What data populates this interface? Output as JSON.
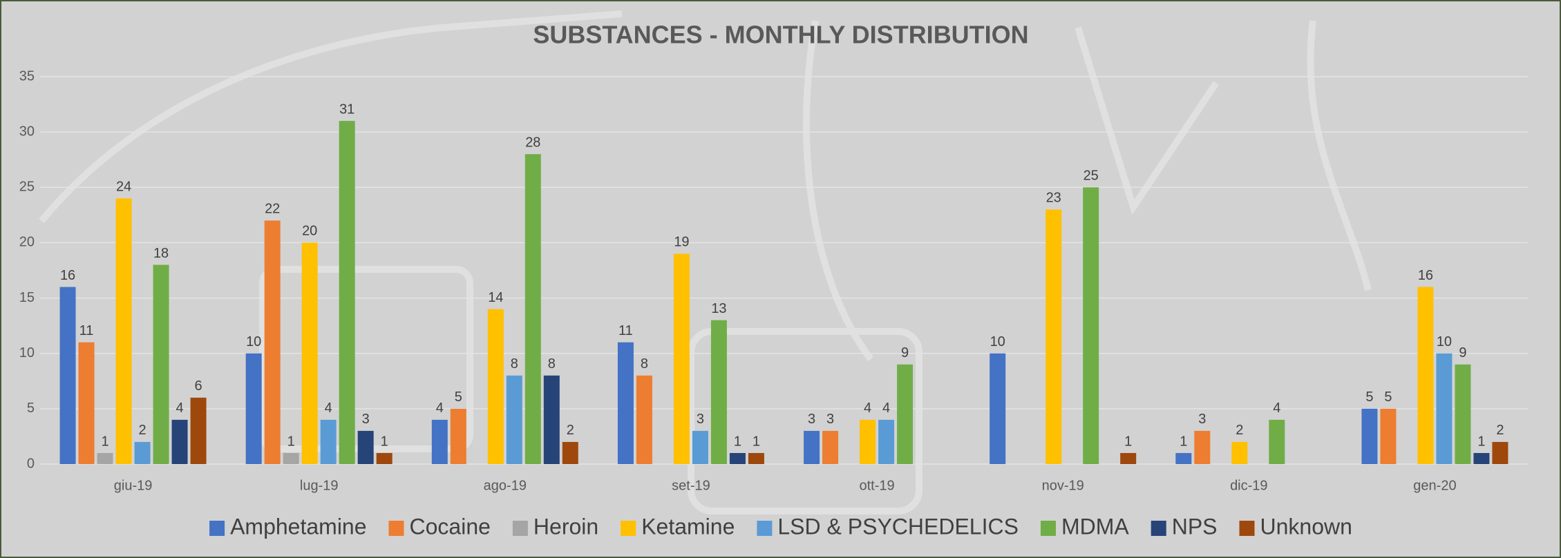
{
  "chart_data": {
    "type": "bar",
    "title": "SUBSTANCES - MONTHLY DISTRIBUTION",
    "categories": [
      "giu-19",
      "lug-19",
      "ago-19",
      "set-19",
      "ott-19",
      "nov-19",
      "dic-19",
      "gen-20"
    ],
    "series": [
      {
        "name": "Amphetamine",
        "color": "#4472c4",
        "values": [
          16,
          10,
          4,
          11,
          3,
          10,
          1,
          5
        ]
      },
      {
        "name": "Cocaine",
        "color": "#ed7d31",
        "values": [
          11,
          22,
          5,
          8,
          3,
          null,
          3,
          5
        ]
      },
      {
        "name": "Heroin",
        "color": "#a5a5a5",
        "values": [
          1,
          1,
          null,
          null,
          null,
          null,
          null,
          null
        ]
      },
      {
        "name": "Ketamine",
        "color": "#ffc000",
        "values": [
          24,
          20,
          14,
          19,
          4,
          23,
          2,
          16
        ]
      },
      {
        "name": "LSD & PSYCHEDELICS",
        "color": "#5b9bd5",
        "values": [
          2,
          4,
          8,
          3,
          4,
          null,
          null,
          10
        ]
      },
      {
        "name": "MDMA",
        "color": "#70ad47",
        "values": [
          18,
          31,
          28,
          13,
          9,
          25,
          4,
          9
        ]
      },
      {
        "name": "NPS",
        "color": "#264478",
        "values": [
          4,
          3,
          8,
          1,
          null,
          null,
          null,
          1
        ]
      },
      {
        "name": "Unknown",
        "color": "#9e480e",
        "values": [
          6,
          1,
          2,
          1,
          null,
          1,
          null,
          2
        ]
      }
    ],
    "ylim": [
      0,
      35
    ],
    "yticks": [
      0,
      5,
      10,
      15,
      20,
      25,
      30,
      35
    ],
    "grid": true,
    "legend": "bottom"
  }
}
